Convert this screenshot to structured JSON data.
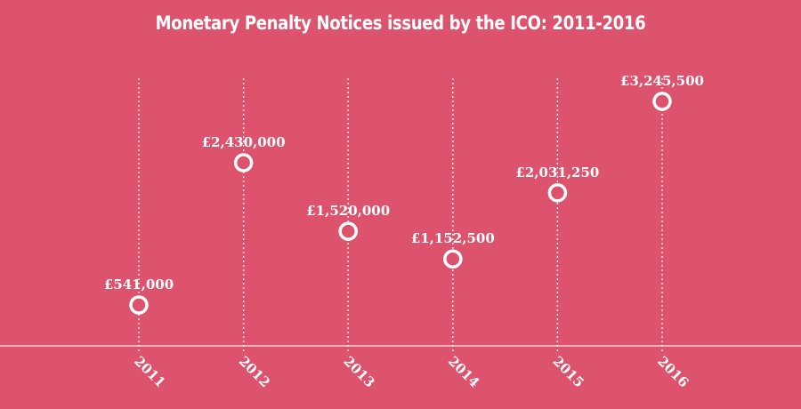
{
  "chart_data": {
    "type": "scatter",
    "title": "Monetary Penalty Notices issued by the ICO: 2011-2016",
    "categories": [
      "2011",
      "2012",
      "2013",
      "2014",
      "2015",
      "2016"
    ],
    "values": [
      541000,
      2430000,
      1520000,
      1152500,
      2031250,
      3245500
    ],
    "labels": [
      "£541,000",
      "£2,430,000",
      "£1,520,000",
      "£1,152,500",
      "£2,031,250",
      "£3,245,500"
    ],
    "xlabel": "",
    "ylabel": "",
    "ylim": [
      0,
      3500000
    ],
    "grid": "vertical dotted lines per year",
    "legend": "none",
    "colors": {
      "background": "#dd526c",
      "marker": "#ffffff",
      "text": "#ffffff"
    }
  }
}
